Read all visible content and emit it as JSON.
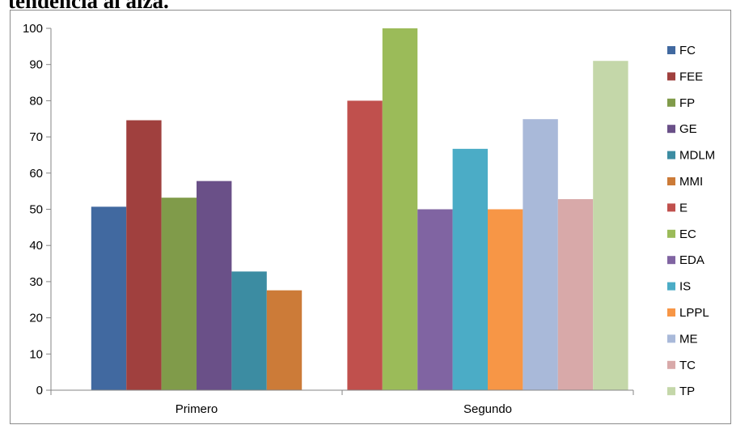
{
  "caption_fragment": "tendencia al alza.",
  "chart_data": {
    "type": "bar",
    "categories": [
      "Primero",
      "Segundo"
    ],
    "ylim": [
      0,
      100
    ],
    "yticks": [
      0,
      10,
      20,
      30,
      40,
      50,
      60,
      70,
      80,
      90,
      100
    ],
    "grid": false,
    "legend_position": "right",
    "series": [
      {
        "name": "FC",
        "color": "#4169A0",
        "values": [
          50.7,
          null
        ]
      },
      {
        "name": "FEE",
        "color": "#A0403E",
        "values": [
          74.6,
          null
        ]
      },
      {
        "name": "FP",
        "color": "#809B4A",
        "values": [
          53.2,
          null
        ]
      },
      {
        "name": "GE",
        "color": "#6A5088",
        "values": [
          57.8,
          null
        ]
      },
      {
        "name": "MDLM",
        "color": "#3C8CA2",
        "values": [
          32.8,
          null
        ]
      },
      {
        "name": "MMI",
        "color": "#CC7B38",
        "values": [
          27.6,
          null
        ]
      },
      {
        "name": "E",
        "color": "#C0504D",
        "values": [
          null,
          80
        ]
      },
      {
        "name": "EC",
        "color": "#9BBB59",
        "values": [
          null,
          100
        ]
      },
      {
        "name": "EDA",
        "color": "#8064A2",
        "values": [
          null,
          50
        ]
      },
      {
        "name": "IS",
        "color": "#4BACC6",
        "values": [
          null,
          66.7
        ]
      },
      {
        "name": "LPPL",
        "color": "#F79646",
        "values": [
          null,
          50
        ]
      },
      {
        "name": "ME",
        "color": "#A9B9D9",
        "values": [
          null,
          74.9
        ]
      },
      {
        "name": "TC",
        "color": "#D8A9A9",
        "values": [
          null,
          52.8
        ]
      },
      {
        "name": "TP",
        "color": "#C4D7A9",
        "values": [
          null,
          91
        ]
      }
    ]
  }
}
